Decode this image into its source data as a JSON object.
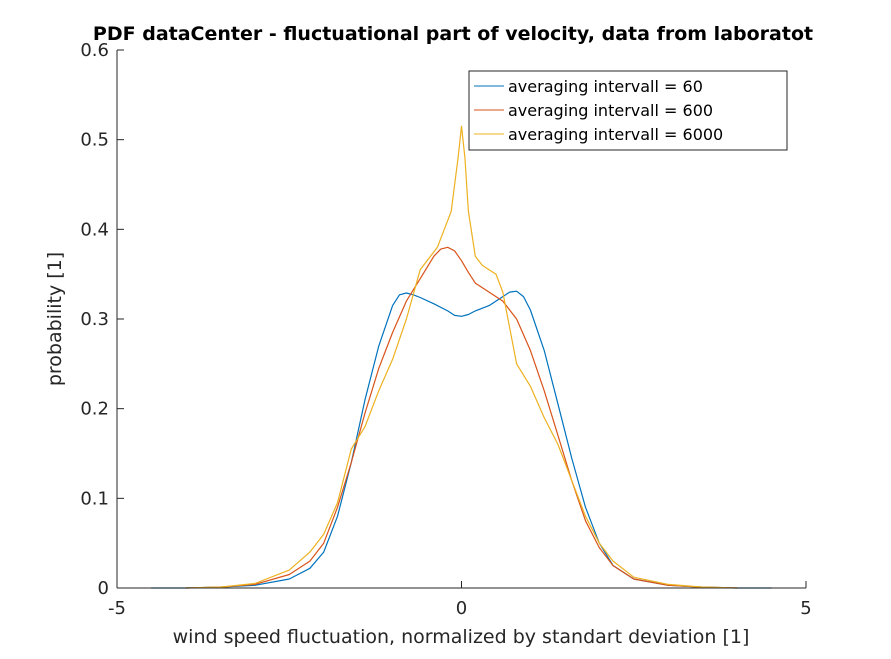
{
  "chart_data": {
    "type": "line",
    "title": "PDF dataCenter - fluctuational part of velocity, data from laboratot",
    "xlabel": "wind speed fluctuation, normalized by standart deviation [1]",
    "ylabel": "probability [1]",
    "xlim": [
      -5,
      5
    ],
    "ylim": [
      0,
      0.6
    ],
    "xticks": [
      -5,
      0,
      5
    ],
    "xtick_labels": [
      "-5",
      "0",
      "5"
    ],
    "yticks": [
      0,
      0.1,
      0.2,
      0.3,
      0.4,
      0.5,
      0.6
    ],
    "ytick_labels": [
      "0",
      "0.1",
      "0.2",
      "0.3",
      "0.4",
      "0.5",
      "0.6"
    ],
    "grid": false,
    "legend_position": "top-right",
    "series": [
      {
        "name": "averaging intervall = 60",
        "color": "#0072BD",
        "x": [
          -4.5,
          -4.0,
          -3.5,
          -3.0,
          -2.5,
          -2.2,
          -2.0,
          -1.8,
          -1.6,
          -1.4,
          -1.2,
          -1.0,
          -0.9,
          -0.8,
          -0.7,
          -0.6,
          -0.4,
          -0.2,
          -0.1,
          0.0,
          0.1,
          0.2,
          0.4,
          0.6,
          0.7,
          0.8,
          0.9,
          1.0,
          1.2,
          1.4,
          1.6,
          1.8,
          2.0,
          2.2,
          2.5,
          3.0,
          3.5,
          4.0,
          4.5
        ],
        "y": [
          0.0,
          0.0,
          0.001,
          0.003,
          0.01,
          0.022,
          0.04,
          0.08,
          0.14,
          0.21,
          0.27,
          0.315,
          0.327,
          0.329,
          0.327,
          0.324,
          0.317,
          0.309,
          0.304,
          0.303,
          0.305,
          0.309,
          0.315,
          0.325,
          0.33,
          0.331,
          0.325,
          0.31,
          0.265,
          0.205,
          0.145,
          0.09,
          0.05,
          0.025,
          0.01,
          0.003,
          0.001,
          0.0,
          0.0
        ]
      },
      {
        "name": "averaging intervall = 600",
        "color": "#D95319",
        "x": [
          -4.0,
          -3.5,
          -3.0,
          -2.5,
          -2.2,
          -2.0,
          -1.8,
          -1.6,
          -1.4,
          -1.2,
          -1.0,
          -0.8,
          -0.6,
          -0.4,
          -0.3,
          -0.2,
          -0.1,
          0.0,
          0.1,
          0.2,
          0.4,
          0.6,
          0.8,
          1.0,
          1.2,
          1.4,
          1.6,
          1.8,
          2.0,
          2.2,
          2.5,
          3.0,
          3.5,
          4.0
        ],
        "y": [
          0.0,
          0.001,
          0.004,
          0.015,
          0.03,
          0.05,
          0.09,
          0.14,
          0.195,
          0.245,
          0.285,
          0.32,
          0.345,
          0.37,
          0.378,
          0.38,
          0.376,
          0.365,
          0.352,
          0.34,
          0.33,
          0.32,
          0.3,
          0.265,
          0.22,
          0.17,
          0.12,
          0.075,
          0.045,
          0.025,
          0.01,
          0.003,
          0.001,
          0.0
        ]
      },
      {
        "name": "averaging intervall = 6000",
        "color": "#EDB120",
        "x": [
          -4.0,
          -3.5,
          -3.0,
          -2.5,
          -2.2,
          -2.0,
          -1.8,
          -1.6,
          -1.4,
          -1.2,
          -1.0,
          -0.8,
          -0.6,
          -0.45,
          -0.35,
          -0.25,
          -0.15,
          -0.05,
          0.0,
          0.05,
          0.1,
          0.2,
          0.3,
          0.4,
          0.5,
          0.6,
          0.8,
          1.0,
          1.2,
          1.4,
          1.6,
          1.8,
          2.0,
          2.2,
          2.5,
          3.0,
          3.5,
          4.0
        ],
        "y": [
          0.0,
          0.001,
          0.005,
          0.02,
          0.04,
          0.06,
          0.095,
          0.155,
          0.18,
          0.22,
          0.255,
          0.3,
          0.355,
          0.37,
          0.38,
          0.4,
          0.42,
          0.48,
          0.515,
          0.48,
          0.42,
          0.37,
          0.36,
          0.355,
          0.35,
          0.33,
          0.25,
          0.225,
          0.19,
          0.16,
          0.12,
          0.08,
          0.05,
          0.03,
          0.012,
          0.004,
          0.001,
          0.0
        ]
      }
    ]
  }
}
